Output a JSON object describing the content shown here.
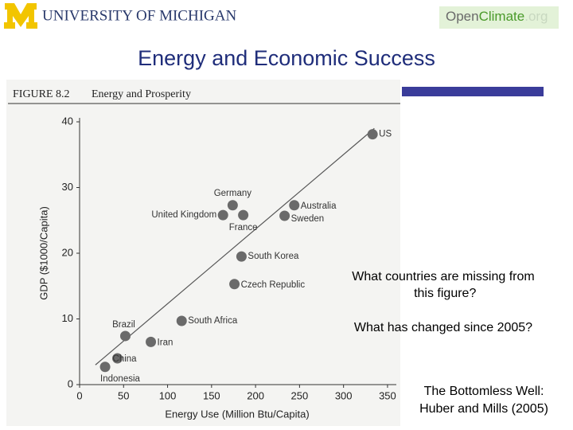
{
  "header": {
    "university": "UNIVERSITY OF MICHIGAN",
    "brand": [
      "Open",
      "Climate",
      ".org"
    ]
  },
  "slide_title": "Energy and Economic Success",
  "questions": [
    "What countries are missing from this figure?",
    "What has changed since 2005?"
  ],
  "source": [
    "The Bottomless Well:",
    "Huber and Mills (2005)"
  ],
  "chart_data": {
    "type": "scatter",
    "title": "FIGURE 8.2",
    "subtitle": "Energy and Prosperity",
    "xlabel": "Energy Use (Million Btu/Capita)",
    "ylabel": "GDP ($1000/Capita)",
    "categories": [
      "US",
      "Germany",
      "United Kingdom",
      "France",
      "Australia",
      "Sweden",
      "South Korea",
      "Czech Republic",
      "South Africa",
      "Brazil",
      "Iran",
      "China",
      "Indonesia"
    ],
    "x": [
      333,
      174,
      163,
      186,
      244,
      233,
      184,
      176,
      116,
      52,
      81,
      43,
      29
    ],
    "values": [
      38.1,
      27.3,
      25.8,
      25.8,
      27.3,
      25.7,
      19.5,
      15.3,
      9.7,
      7.4,
      6.5,
      4.0,
      2.7
    ],
    "color": "#6a6a6a",
    "trend_line": {
      "x": [
        18,
        335
      ],
      "y": [
        3,
        39
      ]
    },
    "xlim": [
      0,
      360
    ],
    "ylim": [
      0,
      40
    ],
    "xticks": [
      0,
      50,
      100,
      150,
      200,
      250,
      300,
      350
    ],
    "yticks": [
      0,
      10,
      20,
      30,
      40
    ]
  }
}
